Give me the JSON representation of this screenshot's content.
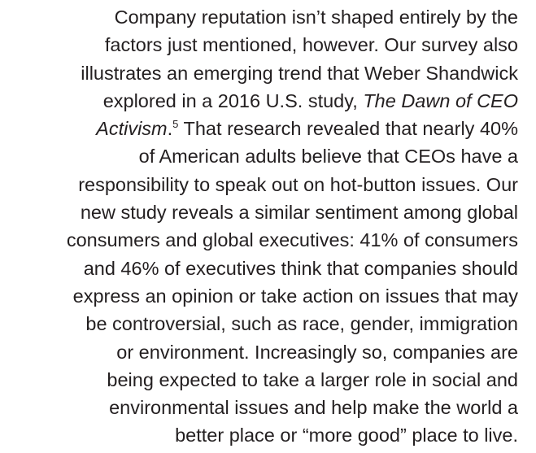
{
  "paragraph": {
    "lines": [
      [
        "Company reputation isn’t shaped entirely by the"
      ],
      [
        "factors just mentioned, however. Our survey also"
      ],
      [
        "illustrates an emerging trend that Weber Shandwick"
      ],
      [
        "explored in a 2016 U.S. study, ",
        "The Dawn of CEO"
      ],
      [
        "Activism",
        ".",
        "5",
        " That research revealed that nearly 40%"
      ],
      [
        "of American adults believe that CEOs have a"
      ],
      [
        "responsibility to speak out on hot-button issues. Our"
      ],
      [
        "new study reveals a similar sentiment among global"
      ],
      [
        "consumers and global executives: 41% of consumers"
      ],
      [
        "and 46% of executives think that companies should"
      ],
      [
        "express an opinion or take action on issues that may"
      ],
      [
        "be controversial, such as race, gender, immigration"
      ],
      [
        "or environment. Increasingly so, companies are"
      ],
      [
        "being expected to take a larger role in social and"
      ],
      [
        "environmental issues and help make the world a"
      ],
      [
        "better place or “more good” place to live."
      ]
    ]
  }
}
